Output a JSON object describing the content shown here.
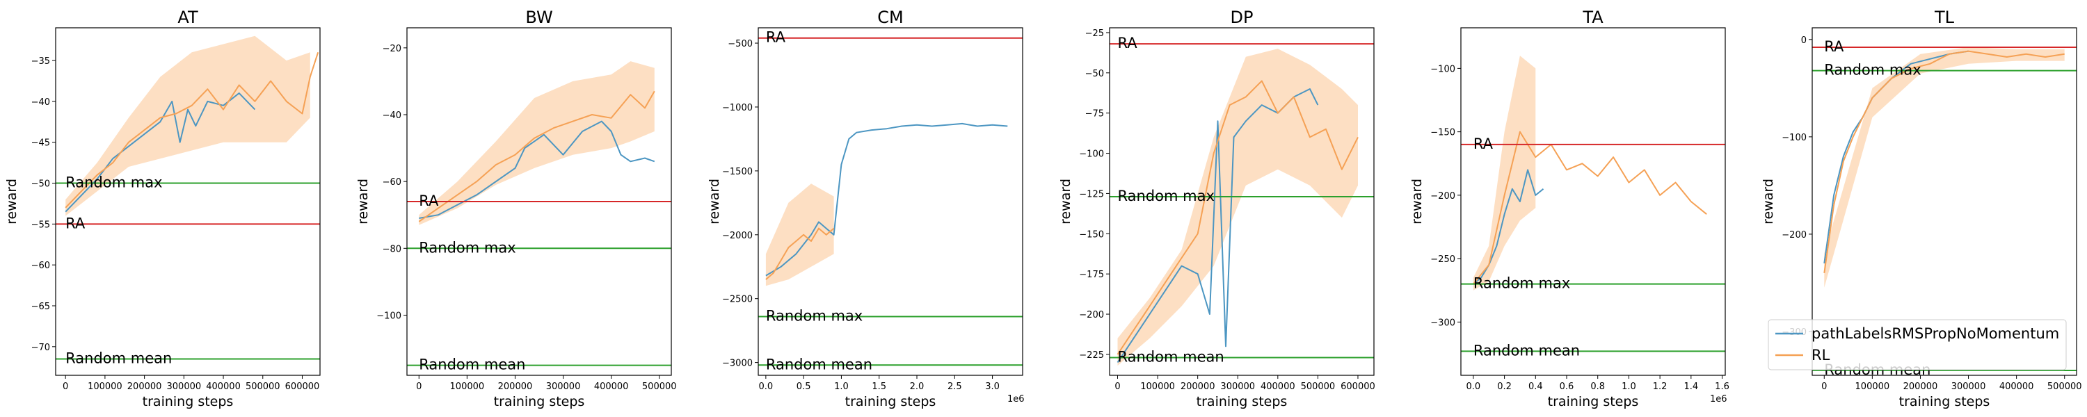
{
  "legend": {
    "placement": "lower right of last panel",
    "entries": [
      {
        "label": "pathLabelsRMSPropNoMomentum",
        "color": "#4c96c2"
      },
      {
        "label": "RL",
        "color": "#f5a155"
      }
    ]
  },
  "colors": {
    "hline_red": "#d62728",
    "hline_green": "#2ca02c",
    "band": "#fdd9b8",
    "series1": "#4c96c2",
    "series2": "#f5a155"
  },
  "chart_data": [
    {
      "type": "line",
      "title": "AT",
      "xlabel": "training steps",
      "ylabel": "reward",
      "xlim": [
        -25000,
        645000
      ],
      "ylim": [
        -73.5,
        -31
      ],
      "xticks": [
        0,
        100000,
        200000,
        300000,
        400000,
        500000,
        600000
      ],
      "xticklabels": [
        "0",
        "100000",
        "200000",
        "300000",
        "400000",
        "500000",
        "600000"
      ],
      "yticks": [
        -70,
        -65,
        -60,
        -55,
        -50,
        -45,
        -40,
        -35
      ],
      "yticklabels": [
        "−70",
        "−65",
        "−60",
        "−55",
        "−50",
        "−45",
        "−40",
        "−35"
      ],
      "x_offset_label": "",
      "hlines": [
        {
          "label": "Random max",
          "y": -50.0,
          "color": "green"
        },
        {
          "label": "RA",
          "y": -55.0,
          "color": "red"
        },
        {
          "label": "Random mean",
          "y": -71.5,
          "color": "green"
        }
      ],
      "series": [
        {
          "x": [
            0,
            40000,
            80000,
            120000,
            160000,
            200000,
            240000,
            270000,
            290000,
            310000,
            330000,
            360000,
            400000,
            440000,
            480000
          ],
          "y": [
            -53.5,
            -51.5,
            -49.5,
            -47,
            -45.5,
            -44,
            -42.5,
            -40,
            -45,
            -41,
            -43,
            -40,
            -40.5,
            -39,
            -41
          ]
        },
        {
          "x": [
            0,
            40000,
            80000,
            120000,
            160000,
            200000,
            240000,
            280000,
            320000,
            360000,
            400000,
            440000,
            480000,
            520000,
            560000,
            600000,
            620000,
            640000
          ],
          "y": [
            -53,
            -51,
            -49,
            -47.5,
            -45,
            -43.5,
            -42,
            -41.5,
            -40.5,
            -38.5,
            -41,
            -38,
            -40,
            -37.5,
            -40,
            -41.5,
            -37,
            -34
          ]
        }
      ],
      "band": {
        "x": [
          0,
          80000,
          160000,
          240000,
          320000,
          400000,
          480000,
          560000,
          620000
        ],
        "lower": [
          -54,
          -51,
          -48,
          -47,
          -46,
          -45,
          -45,
          -45,
          -42
        ],
        "upper": [
          -52,
          -47.5,
          -42,
          -37,
          -34,
          -33,
          -32,
          -35,
          -34
        ]
      }
    },
    {
      "type": "line",
      "title": "BW",
      "xlabel": "training steps",
      "ylabel": "reward",
      "xlim": [
        -25000,
        525000
      ],
      "ylim": [
        -118,
        -14
      ],
      "xticks": [
        0,
        100000,
        200000,
        300000,
        400000,
        500000
      ],
      "xticklabels": [
        "0",
        "100000",
        "200000",
        "300000",
        "400000",
        "500000"
      ],
      "yticks": [
        -100,
        -80,
        -60,
        -40,
        -20
      ],
      "yticklabels": [
        "−100",
        "−80",
        "−60",
        "−40",
        "−20"
      ],
      "x_offset_label": "",
      "hlines": [
        {
          "label": "RA",
          "y": -66.0,
          "color": "red"
        },
        {
          "label": "Random max",
          "y": -80.0,
          "color": "green"
        },
        {
          "label": "Random mean",
          "y": -115.0,
          "color": "green"
        }
      ],
      "series": [
        {
          "x": [
            0,
            40000,
            80000,
            120000,
            160000,
            200000,
            220000,
            260000,
            300000,
            340000,
            380000,
            400000,
            420000,
            440000,
            470000,
            490000
          ],
          "y": [
            -71,
            -70,
            -67,
            -64,
            -60,
            -56,
            -50,
            -46,
            -52,
            -45,
            -42,
            -45,
            -52,
            -54,
            -53,
            -54
          ]
        },
        {
          "x": [
            0,
            40000,
            80000,
            120000,
            160000,
            200000,
            240000,
            280000,
            320000,
            360000,
            400000,
            440000,
            470000,
            490000
          ],
          "y": [
            -72,
            -68,
            -64,
            -60,
            -55,
            -52,
            -47,
            -44,
            -42,
            -40,
            -41,
            -34,
            -38,
            -33
          ]
        }
      ],
      "band": {
        "x": [
          0,
          80000,
          160000,
          240000,
          320000,
          400000,
          440000,
          490000
        ],
        "lower": [
          -73,
          -68,
          -61,
          -56,
          -52,
          -50,
          -48,
          -45
        ],
        "upper": [
          -70,
          -60,
          -48,
          -35,
          -30,
          -28,
          -24,
          -26
        ]
      }
    },
    {
      "type": "line",
      "title": "CM",
      "xlabel": "training steps",
      "ylabel": "reward",
      "xlim": [
        -100000,
        3400000
      ],
      "ylim": [
        -3100,
        -380
      ],
      "xticks": [
        0,
        500000,
        1000000,
        1500000,
        2000000,
        2500000,
        3000000
      ],
      "xticklabels": [
        "0.0",
        "0.5",
        "1.0",
        "1.5",
        "2.0",
        "2.5",
        "3.0"
      ],
      "yticks": [
        -3000,
        -2500,
        -2000,
        -1500,
        -1000,
        -500
      ],
      "yticklabels": [
        "−3000",
        "−2500",
        "−2000",
        "−1500",
        "−1000",
        "−500"
      ],
      "x_offset_label": "1e6",
      "hlines": [
        {
          "label": "RA",
          "y": -460.0,
          "color": "red"
        },
        {
          "label": "Random max",
          "y": -2640.0,
          "color": "green"
        },
        {
          "label": "Random mean",
          "y": -3020.0,
          "color": "green"
        }
      ],
      "series": [
        {
          "x": [
            0,
            200000,
            400000,
            600000,
            700000,
            800000,
            900000,
            1000000,
            1100000,
            1200000,
            1400000,
            1600000,
            1800000,
            2000000,
            2200000,
            2400000,
            2600000,
            2800000,
            3000000,
            3200000
          ],
          "y": [
            -2320,
            -2250,
            -2150,
            -2000,
            -1900,
            -1950,
            -2000,
            -1450,
            -1250,
            -1200,
            -1180,
            -1170,
            -1150,
            -1140,
            -1150,
            -1140,
            -1130,
            -1150,
            -1140,
            -1150
          ]
        },
        {
          "x": [
            0,
            100000,
            200000,
            300000,
            400000,
            500000,
            600000,
            700000,
            800000,
            900000
          ],
          "y": [
            -2350,
            -2300,
            -2200,
            -2100,
            -2050,
            -2000,
            -2050,
            -1950,
            -2000,
            -1950
          ]
        }
      ],
      "band": {
        "x": [
          0,
          300000,
          600000,
          900000
        ],
        "lower": [
          -2400,
          -2350,
          -2250,
          -2150
        ],
        "upper": [
          -2150,
          -1750,
          -1600,
          -1700
        ]
      }
    },
    {
      "type": "line",
      "title": "DP",
      "xlabel": "training steps",
      "ylabel": "reward",
      "xlim": [
        -20000,
        640000
      ],
      "ylim": [
        -238,
        -22
      ],
      "xticks": [
        0,
        100000,
        200000,
        300000,
        400000,
        500000,
        600000
      ],
      "xticklabels": [
        "0",
        "100000",
        "200000",
        "300000",
        "400000",
        "500000",
        "600000"
      ],
      "yticks": [
        -225,
        -200,
        -175,
        -150,
        -125,
        -100,
        -75,
        -50,
        -25
      ],
      "yticklabels": [
        "−225",
        "−200",
        "−175",
        "−150",
        "−125",
        "−100",
        "−75",
        "−50",
        "−25"
      ],
      "x_offset_label": "",
      "hlines": [
        {
          "label": "RA",
          "y": -32.0,
          "color": "red"
        },
        {
          "label": "Random max",
          "y": -127.0,
          "color": "green"
        },
        {
          "label": "Random mean",
          "y": -227.0,
          "color": "green"
        }
      ],
      "series": [
        {
          "x": [
            0,
            40000,
            80000,
            120000,
            160000,
            200000,
            230000,
            250000,
            270000,
            290000,
            320000,
            360000,
            400000,
            440000,
            480000,
            500000
          ],
          "y": [
            -230,
            -215,
            -200,
            -185,
            -170,
            -175,
            -200,
            -80,
            -220,
            -90,
            -80,
            -70,
            -75,
            -65,
            -60,
            -70
          ]
        },
        {
          "x": [
            0,
            40000,
            80000,
            120000,
            160000,
            200000,
            240000,
            280000,
            320000,
            360000,
            400000,
            440000,
            480000,
            520000,
            560000,
            600000
          ],
          "y": [
            -225,
            -210,
            -195,
            -180,
            -165,
            -150,
            -100,
            -70,
            -65,
            -55,
            -75,
            -65,
            -90,
            -85,
            -110,
            -90
          ]
        }
      ],
      "band": {
        "x": [
          0,
          80000,
          160000,
          240000,
          320000,
          400000,
          480000,
          560000,
          600000
        ],
        "lower": [
          -232,
          -215,
          -195,
          -170,
          -120,
          -110,
          -120,
          -140,
          -120
        ],
        "upper": [
          -215,
          -190,
          -160,
          -90,
          -40,
          -35,
          -45,
          -60,
          -70
        ]
      }
    },
    {
      "type": "line",
      "title": "TA",
      "xlabel": "training steps",
      "ylabel": "reward",
      "xlim": [
        -80000,
        1620000
      ],
      "ylim": [
        -342,
        -68
      ],
      "xticks": [
        0,
        200000,
        400000,
        600000,
        800000,
        1000000,
        1200000,
        1400000,
        1600000
      ],
      "xticklabels": [
        "0.0",
        "0.2",
        "0.4",
        "0.6",
        "0.8",
        "1.0",
        "1.2",
        "1.4",
        "1.6"
      ],
      "yticks": [
        -300,
        -250,
        -200,
        -150,
        -100
      ],
      "yticklabels": [
        "−300",
        "−250",
        "−200",
        "−150",
        "−100"
      ],
      "x_offset_label": "1e6",
      "hlines": [
        {
          "label": "RA",
          "y": -160.0,
          "color": "red"
        },
        {
          "label": "Random max",
          "y": -270.0,
          "color": "green"
        },
        {
          "label": "Random mean",
          "y": -323.0,
          "color": "green"
        }
      ],
      "series": [
        {
          "x": [
            0,
            50000,
            100000,
            150000,
            200000,
            250000,
            300000,
            350000,
            400000,
            450000
          ],
          "y": [
            -270,
            -265,
            -255,
            -240,
            -215,
            -195,
            -205,
            -180,
            -200,
            -195
          ]
        },
        {
          "x": [
            0,
            100000,
            200000,
            300000,
            400000,
            500000,
            600000,
            700000,
            800000,
            900000,
            1000000,
            1100000,
            1200000,
            1300000,
            1400000,
            1500000
          ],
          "y": [
            -270,
            -255,
            -200,
            -150,
            -170,
            -160,
            -180,
            -175,
            -185,
            -170,
            -190,
            -180,
            -200,
            -190,
            -205,
            -215
          ]
        }
      ],
      "band": {
        "x": [
          0,
          100000,
          200000,
          300000,
          400000
        ],
        "lower": [
          -275,
          -268,
          -240,
          -220,
          -210
        ],
        "upper": [
          -265,
          -240,
          -150,
          -90,
          -100
        ]
      }
    },
    {
      "type": "line",
      "title": "TL",
      "xlabel": "training steps",
      "ylabel": "reward",
      "xlim": [
        -25000,
        525000
      ],
      "ylim": [
        -345,
        12
      ],
      "xticks": [
        0,
        100000,
        200000,
        300000,
        400000,
        500000
      ],
      "xticklabels": [
        "0",
        "100000",
        "200000",
        "300000",
        "400000",
        "500000"
      ],
      "yticks": [
        -300,
        -200,
        -100,
        0
      ],
      "yticklabels": [
        "−300",
        "−200",
        "−100",
        "0"
      ],
      "x_offset_label": "",
      "hlines": [
        {
          "label": "RA",
          "y": -8.0,
          "color": "red"
        },
        {
          "label": "Random max",
          "y": -32.0,
          "color": "green"
        },
        {
          "label": "Random mean",
          "y": -340.0,
          "color": "green"
        }
      ],
      "series": [
        {
          "x": [
            0,
            20000,
            40000,
            60000,
            80000,
            100000,
            140000,
            180000,
            220000,
            260000,
            300000
          ],
          "y": [
            -230,
            -160,
            -120,
            -95,
            -80,
            -60,
            -40,
            -25,
            -20,
            -15,
            -12
          ]
        },
        {
          "x": [
            0,
            20000,
            40000,
            60000,
            80000,
            100000,
            140000,
            180000,
            220000,
            260000,
            300000,
            340000,
            380000,
            420000,
            460000,
            500000
          ],
          "y": [
            -240,
            -170,
            -125,
            -100,
            -80,
            -60,
            -40,
            -30,
            -25,
            -15,
            -12,
            -15,
            -18,
            -15,
            -18,
            -15
          ]
        }
      ],
      "band": {
        "x": [
          0,
          100000,
          200000,
          300000,
          400000,
          500000
        ],
        "lower": [
          -255,
          -80,
          -35,
          -25,
          -22,
          -22
        ],
        "upper": [
          -220,
          -50,
          -15,
          -8,
          -10,
          -10
        ]
      }
    }
  ]
}
